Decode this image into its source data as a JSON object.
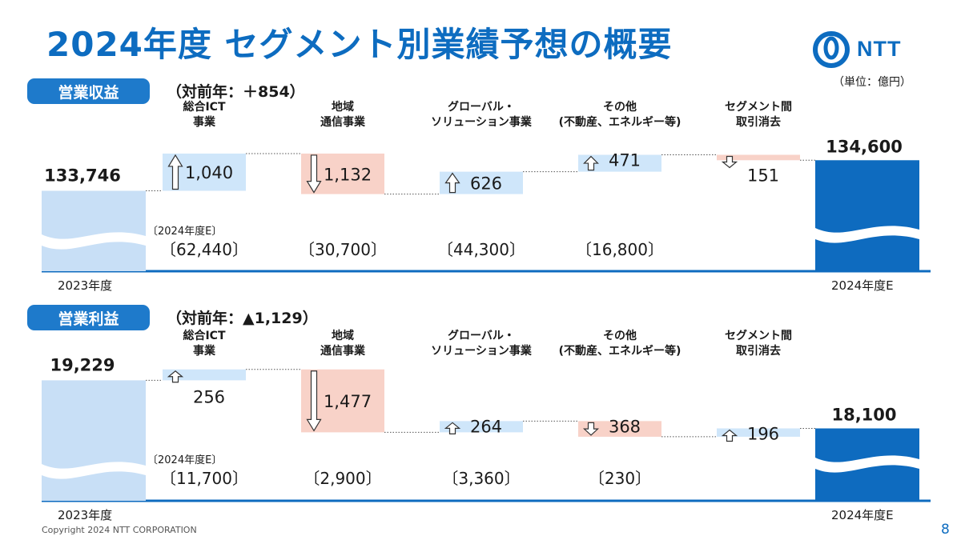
{
  "page": {
    "title": "2024年度 セグメント別業績予想の概要",
    "logo_text": "NTT",
    "unit": "（単位：億円）",
    "copyright": "Copyright 2024 NTT CORPORATION",
    "page_number": "8"
  },
  "colors": {
    "brand": "#0d6cc0",
    "increase": "#cfe6fa",
    "decrease": "#f8d2c8",
    "total_bar": "#0e6bbf",
    "start_bar": "#c8dff6"
  },
  "chart_data": [
    {
      "type": "bar",
      "subtype": "waterfall",
      "label": "営業収益",
      "yoy": "（対前年：＋854）",
      "categories": [
        "総合ICT\n事業",
        "地域\n通信事業",
        "グローバル・\nソリューション事業",
        "その他\n(不動産、エネルギー等)",
        "セグメント間\n取引消去"
      ],
      "start": {
        "label": "2023年度",
        "value": 133746,
        "value_text": "133,746"
      },
      "end": {
        "label": "2024年度E",
        "value": 134600,
        "value_text": "134,600"
      },
      "steps": [
        {
          "delta": 1040,
          "text": "1,040",
          "direction": "up"
        },
        {
          "delta": -1132,
          "text": "1,132",
          "direction": "down"
        },
        {
          "delta": 626,
          "text": "626",
          "direction": "up"
        },
        {
          "delta": 471,
          "text": "471",
          "direction": "up"
        },
        {
          "delta": -151,
          "text": "151",
          "direction": "down"
        }
      ],
      "forecast_caption": "〔2024年度E〕",
      "forecast_values": [
        "〔62,440〕",
        "〔30,700〕",
        "〔44,300〕",
        "〔16,800〕"
      ],
      "ylim": [
        131500,
        135500
      ]
    },
    {
      "type": "bar",
      "subtype": "waterfall",
      "label": "営業利益",
      "yoy": "（対前年：▲1,129）",
      "categories": [
        "総合ICT\n事業",
        "地域\n通信事業",
        "グローバル・\nソリューション事業",
        "その他\n(不動産、エネルギー等)",
        "セグメント間\n取引消去"
      ],
      "start": {
        "label": "2023年度",
        "value": 19229,
        "value_text": "19,229"
      },
      "end": {
        "label": "2024年度E",
        "value": 18100,
        "value_text": "18,100"
      },
      "steps": [
        {
          "delta": 256,
          "text": "256",
          "direction": "up"
        },
        {
          "delta": -1477,
          "text": "1,477",
          "direction": "down"
        },
        {
          "delta": 264,
          "text": "264",
          "direction": "up"
        },
        {
          "delta": -368,
          "text": "368",
          "direction": "down"
        },
        {
          "delta": 196,
          "text": "196",
          "direction": "up"
        }
      ],
      "forecast_caption": "〔2024年度E〕",
      "forecast_values": [
        "〔11,700〕",
        "〔2,900〕",
        "〔3,360〕",
        "〔230〕"
      ],
      "ylim": [
        16400,
        19800
      ]
    }
  ]
}
